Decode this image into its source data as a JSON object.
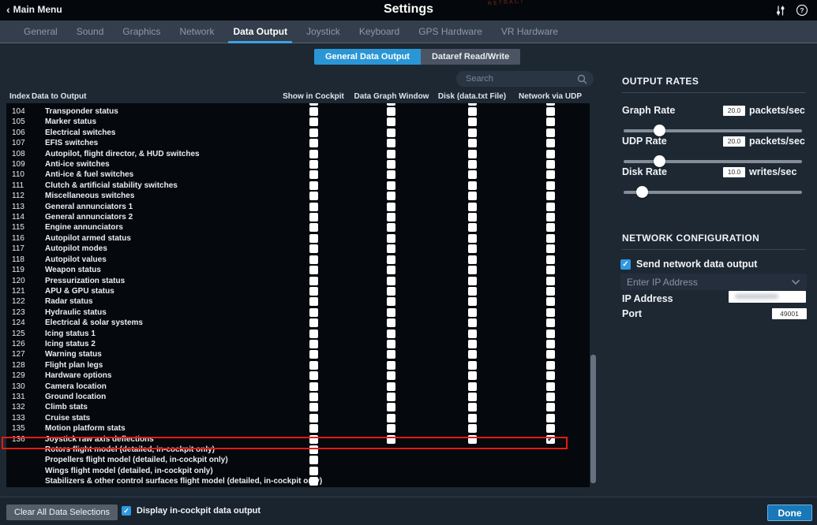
{
  "titlebar": {
    "back_label": "Main Menu",
    "title": "Settings",
    "decor_text": "RETRACT"
  },
  "tabs": {
    "items": [
      "General",
      "Sound",
      "Graphics",
      "Network",
      "Data Output",
      "Joystick",
      "Keyboard",
      "GPS Hardware",
      "VR Hardware"
    ],
    "active": "Data Output"
  },
  "subtabs": {
    "items": [
      "General Data Output",
      "Dataref Read/Write"
    ],
    "active": "General Data Output"
  },
  "search": {
    "placeholder": "Search"
  },
  "table": {
    "columns": [
      "Index",
      "Data to Output",
      "Show in Cockpit",
      "Data Graph Window",
      "Disk (data.txt File)",
      "Network via UDP"
    ],
    "rows": [
      {
        "index": "104",
        "label": "Transponder status",
        "checks": [
          false,
          false,
          false,
          false
        ]
      },
      {
        "index": "105",
        "label": "Marker status",
        "checks": [
          false,
          false,
          false,
          false
        ]
      },
      {
        "index": "106",
        "label": "Electrical switches",
        "checks": [
          false,
          false,
          false,
          false
        ]
      },
      {
        "index": "107",
        "label": "EFIS switches",
        "checks": [
          false,
          false,
          false,
          false
        ]
      },
      {
        "index": "108",
        "label": "Autopilot, flight director, & HUD switches",
        "checks": [
          false,
          false,
          false,
          false
        ]
      },
      {
        "index": "109",
        "label": "Anti-ice switches",
        "checks": [
          false,
          false,
          false,
          false
        ]
      },
      {
        "index": "110",
        "label": "Anti-ice & fuel switches",
        "checks": [
          false,
          false,
          false,
          false
        ]
      },
      {
        "index": "111",
        "label": "Clutch & artificial stability switches",
        "checks": [
          false,
          false,
          false,
          false
        ]
      },
      {
        "index": "112",
        "label": "Miscellaneous switches",
        "checks": [
          false,
          false,
          false,
          false
        ]
      },
      {
        "index": "113",
        "label": "General annunciators 1",
        "checks": [
          false,
          false,
          false,
          false
        ]
      },
      {
        "index": "114",
        "label": "General annunciators 2",
        "checks": [
          false,
          false,
          false,
          false
        ]
      },
      {
        "index": "115",
        "label": "Engine annunciators",
        "checks": [
          false,
          false,
          false,
          false
        ]
      },
      {
        "index": "116",
        "label": "Autopilot armed status",
        "checks": [
          false,
          false,
          false,
          false
        ]
      },
      {
        "index": "117",
        "label": "Autopilot modes",
        "checks": [
          false,
          false,
          false,
          false
        ]
      },
      {
        "index": "118",
        "label": "Autopilot values",
        "checks": [
          false,
          false,
          false,
          false
        ]
      },
      {
        "index": "119",
        "label": "Weapon status",
        "checks": [
          false,
          false,
          false,
          false
        ]
      },
      {
        "index": "120",
        "label": "Pressurization status",
        "checks": [
          false,
          false,
          false,
          false
        ]
      },
      {
        "index": "121",
        "label": "APU & GPU status",
        "checks": [
          false,
          false,
          false,
          false
        ]
      },
      {
        "index": "122",
        "label": "Radar status",
        "checks": [
          false,
          false,
          false,
          false
        ]
      },
      {
        "index": "123",
        "label": "Hydraulic status",
        "checks": [
          false,
          false,
          false,
          false
        ]
      },
      {
        "index": "124",
        "label": "Electrical & solar systems",
        "checks": [
          false,
          false,
          false,
          false
        ]
      },
      {
        "index": "125",
        "label": "Icing status 1",
        "checks": [
          false,
          false,
          false,
          false
        ]
      },
      {
        "index": "126",
        "label": "Icing status 2",
        "checks": [
          false,
          false,
          false,
          false
        ]
      },
      {
        "index": "127",
        "label": "Warning status",
        "checks": [
          false,
          false,
          false,
          false
        ]
      },
      {
        "index": "128",
        "label": "Flight plan legs",
        "checks": [
          false,
          false,
          false,
          false
        ]
      },
      {
        "index": "129",
        "label": "Hardware options",
        "checks": [
          false,
          false,
          false,
          false
        ]
      },
      {
        "index": "130",
        "label": "Camera location",
        "checks": [
          false,
          false,
          false,
          false
        ]
      },
      {
        "index": "131",
        "label": "Ground location",
        "checks": [
          false,
          false,
          false,
          false
        ]
      },
      {
        "index": "132",
        "label": "Climb stats",
        "checks": [
          false,
          false,
          false,
          false
        ]
      },
      {
        "index": "133",
        "label": "Cruise stats",
        "checks": [
          false,
          false,
          false,
          false
        ]
      },
      {
        "index": "135",
        "label": "Motion platform stats",
        "checks": [
          false,
          false,
          false,
          false
        ]
      },
      {
        "index": "136",
        "label": "Joystick raw axis deflections",
        "checks": [
          false,
          false,
          false,
          true
        ],
        "highlighted": true
      },
      {
        "index": "",
        "label": "Rotors flight model (detailed, in-cockpit only)",
        "checks": [
          false
        ]
      },
      {
        "index": "",
        "label": "Propellers flight model (detailed, in-cockpit only)",
        "checks": [
          false
        ]
      },
      {
        "index": "",
        "label": "Wings flight model (detailed, in-cockpit only)",
        "checks": [
          false
        ]
      },
      {
        "index": "",
        "label": "Stabilizers & other control surfaces flight model (detailed, in-cockpit only)",
        "checks": [
          false
        ]
      }
    ]
  },
  "output_rates": {
    "heading": "OUTPUT RATES",
    "sliders": [
      {
        "label": "Graph Rate",
        "value": "20.0",
        "unit": "packets/sec"
      },
      {
        "label": "UDP Rate",
        "value": "20.0",
        "unit": "packets/sec"
      },
      {
        "label": "Disk Rate",
        "value": "10.0",
        "unit": "writes/sec"
      }
    ]
  },
  "network_config": {
    "heading": "NETWORK CONFIGURATION",
    "send_checkbox_label": "Send network data output",
    "send_checked": true,
    "ip_dropdown_placeholder": "Enter IP Address",
    "ip_label": "IP Address",
    "port_label": "Port",
    "port_value": "49001"
  },
  "footer": {
    "clear_button": "Clear All Data Selections",
    "display_checkbox_label": "Display in-cockpit data output",
    "display_checked": true,
    "done_button": "Done"
  },
  "colors": {
    "accent_blue": "#2b96d5",
    "tab_underline": "#3aa3e3",
    "highlight_red": "#e31d12",
    "checkbox_blue": "#2e9ae2",
    "table_bg": "#05080d",
    "panel_bg": "#1e2833",
    "done_button": "#1878b8"
  }
}
